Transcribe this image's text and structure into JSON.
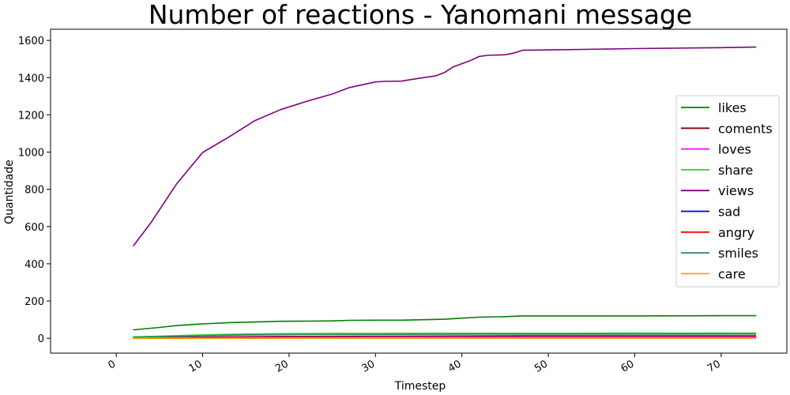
{
  "chart_data": {
    "type": "line",
    "title": "Number of reactions - Yanomani message",
    "xlabel": "Timestep",
    "ylabel": "Quantidade",
    "xlim": [
      -7.6,
      77.6
    ],
    "ylim": [
      -80,
      1660
    ],
    "x_ticks": [
      0,
      10,
      20,
      30,
      40,
      50,
      60,
      70
    ],
    "y_ticks": [
      0,
      200,
      400,
      600,
      800,
      1000,
      1200,
      1400,
      1600
    ],
    "grid": false,
    "legend_position": "center-right",
    "series": [
      {
        "name": "likes",
        "color": "#008000",
        "points": [
          [
            2,
            45
          ],
          [
            5,
            58
          ],
          [
            7,
            68
          ],
          [
            10,
            77
          ],
          [
            13,
            84
          ],
          [
            16,
            87
          ],
          [
            19,
            91
          ],
          [
            22,
            92
          ],
          [
            25,
            93
          ],
          [
            27,
            96
          ],
          [
            30,
            97
          ],
          [
            33,
            97
          ],
          [
            35,
            99
          ],
          [
            38,
            102
          ],
          [
            40,
            108
          ],
          [
            42,
            113
          ],
          [
            45,
            116
          ],
          [
            47,
            120
          ],
          [
            50,
            120
          ],
          [
            60,
            120
          ],
          [
            70,
            121
          ],
          [
            74,
            121
          ]
        ]
      },
      {
        "name": "coments",
        "color": "#8b0000",
        "points": [
          [
            2,
            2
          ],
          [
            10,
            6
          ],
          [
            20,
            10
          ],
          [
            30,
            11
          ],
          [
            40,
            12
          ],
          [
            47,
            13
          ],
          [
            60,
            13
          ],
          [
            74,
            13
          ]
        ]
      },
      {
        "name": "loves",
        "color": "#ff00ff",
        "points": [
          [
            2,
            1
          ],
          [
            10,
            3
          ],
          [
            20,
            4
          ],
          [
            30,
            5
          ],
          [
            40,
            6
          ],
          [
            74,
            6
          ]
        ]
      },
      {
        "name": "share",
        "color": "#32cd32",
        "points": [
          [
            2,
            8
          ],
          [
            5,
            11
          ],
          [
            8,
            15
          ],
          [
            10,
            18
          ],
          [
            13,
            21
          ],
          [
            16,
            23
          ],
          [
            20,
            25
          ],
          [
            25,
            26
          ],
          [
            30,
            26
          ],
          [
            40,
            27
          ],
          [
            50,
            27
          ],
          [
            60,
            28
          ],
          [
            74,
            28
          ]
        ]
      },
      {
        "name": "views",
        "color": "#800080",
        "points": [
          [
            2,
            497
          ],
          [
            4,
            620
          ],
          [
            7,
            830
          ],
          [
            10,
            998
          ],
          [
            13,
            1080
          ],
          [
            16,
            1168
          ],
          [
            19,
            1228
          ],
          [
            22,
            1272
          ],
          [
            25,
            1312
          ],
          [
            27,
            1347
          ],
          [
            30,
            1377
          ],
          [
            31,
            1380
          ],
          [
            33,
            1381
          ],
          [
            35,
            1396
          ],
          [
            37,
            1410
          ],
          [
            38,
            1428
          ],
          [
            39,
            1458
          ],
          [
            41,
            1492
          ],
          [
            42,
            1514
          ],
          [
            43,
            1520
          ],
          [
            45,
            1523
          ],
          [
            46,
            1532
          ],
          [
            47,
            1547
          ],
          [
            50,
            1549
          ],
          [
            60,
            1556
          ],
          [
            70,
            1561
          ],
          [
            74,
            1564
          ]
        ]
      },
      {
        "name": "sad",
        "color": "#0000cd",
        "points": [
          [
            2,
            0
          ],
          [
            20,
            1
          ],
          [
            40,
            1
          ],
          [
            74,
            1
          ]
        ]
      },
      {
        "name": "angry",
        "color": "#ff0000",
        "points": [
          [
            2,
            0
          ],
          [
            20,
            1
          ],
          [
            40,
            2
          ],
          [
            74,
            2
          ]
        ]
      },
      {
        "name": "smiles",
        "color": "#2e8b57",
        "points": [
          [
            2,
            5
          ],
          [
            10,
            14
          ],
          [
            15,
            18
          ],
          [
            20,
            20
          ],
          [
            30,
            21
          ],
          [
            40,
            22
          ],
          [
            50,
            22
          ],
          [
            74,
            23
          ]
        ]
      },
      {
        "name": "care",
        "color": "#ffa500",
        "points": [
          [
            2,
            0
          ],
          [
            20,
            1
          ],
          [
            40,
            1
          ],
          [
            74,
            1
          ]
        ]
      }
    ]
  }
}
